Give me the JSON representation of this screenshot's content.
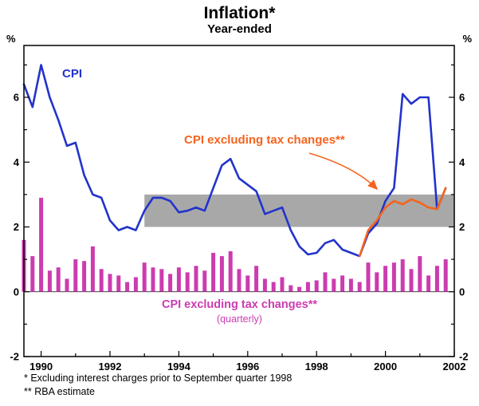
{
  "header": {
    "title": "Inflation*",
    "subtitle": "Year-ended"
  },
  "axes": {
    "left_unit": "%",
    "right_unit": "%"
  },
  "annotations": {
    "cpi_label": "CPI",
    "ex_tax_line_label": "CPI excluding tax changes**",
    "bar_label": "CPI excluding tax changes**",
    "bar_sublabel": "(quarterly)"
  },
  "footnotes": [
    "* Excluding interest charges prior to September quarter 1998",
    "** RBA estimate"
  ],
  "chart_data": {
    "type": "combo",
    "title": "Inflation*",
    "subtitle": "Year-ended",
    "ylabel": "%",
    "ylim": [
      -2,
      7.6
    ],
    "xlim": [
      1989.5,
      2002
    ],
    "y_ticks": [
      -2,
      0,
      2,
      4,
      6
    ],
    "x_ticks_labeled": [
      1990,
      1992,
      1994,
      1996,
      1998,
      2000,
      2002
    ],
    "x_ticks_minor_step": 1,
    "grid": false,
    "legend_position": "none",
    "target_band": {
      "from": 2,
      "to": 3,
      "x_start": 1993,
      "x_end": 2002,
      "color": "#a8a8a8"
    },
    "series": [
      {
        "name": "CPI",
        "type": "line",
        "color": "#2233cc",
        "x_start": 1989.5,
        "x_step": 0.25,
        "values": [
          6.4,
          5.7,
          7.0,
          6.0,
          5.3,
          4.5,
          4.6,
          3.6,
          3.0,
          2.9,
          2.2,
          1.9,
          2.0,
          1.9,
          2.5,
          2.9,
          2.9,
          2.8,
          2.45,
          2.5,
          2.6,
          2.5,
          3.2,
          3.9,
          4.1,
          3.5,
          3.3,
          3.1,
          2.4,
          2.5,
          2.6,
          1.9,
          1.4,
          1.15,
          1.2,
          1.5,
          1.6,
          1.3,
          1.2,
          1.1,
          1.8,
          2.1,
          2.8,
          3.2,
          6.1,
          5.8,
          6.0,
          6.0,
          2.55,
          3.2
        ]
      },
      {
        "name": "CPI excluding tax changes**",
        "type": "line",
        "color": "#f5641e",
        "x_start": 1999.25,
        "x_step": 0.25,
        "values": [
          1.1,
          1.9,
          2.2,
          2.6,
          2.8,
          2.7,
          2.85,
          2.75,
          2.6,
          2.55,
          3.2
        ]
      },
      {
        "name": "CPI excluding tax changes** (quarterly)",
        "type": "bar",
        "color": "#cb3cb0",
        "x_start": 1989.5,
        "x_step": 0.25,
        "values": [
          1.6,
          1.1,
          2.9,
          0.65,
          0.75,
          0.4,
          1.0,
          0.95,
          1.4,
          0.7,
          0.55,
          0.5,
          0.3,
          0.45,
          0.9,
          0.75,
          0.7,
          0.55,
          0.75,
          0.6,
          0.8,
          0.65,
          1.2,
          1.1,
          1.25,
          0.7,
          0.5,
          0.8,
          0.4,
          0.3,
          0.45,
          0.2,
          0.15,
          0.3,
          0.35,
          0.6,
          0.4,
          0.5,
          0.4,
          0.3,
          0.9,
          0.6,
          0.8,
          0.9,
          1.0,
          0.7,
          1.1,
          0.5,
          0.8,
          1.0
        ]
      }
    ]
  }
}
